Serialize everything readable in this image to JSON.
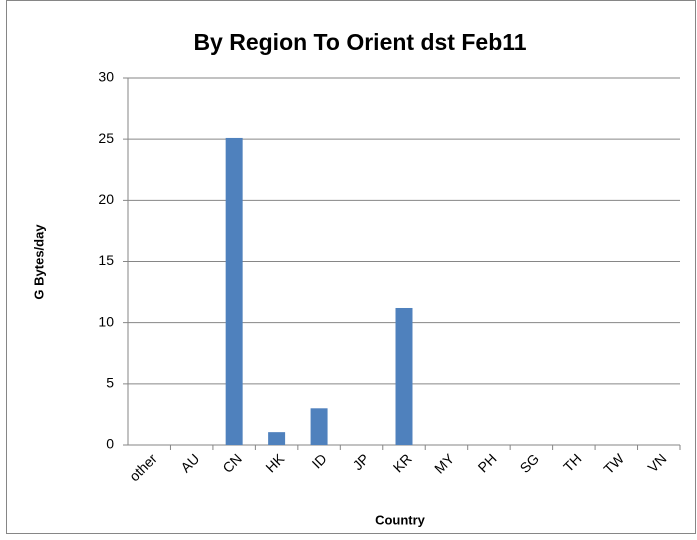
{
  "chart_data": {
    "type": "bar",
    "title": "By Region To Orient dst Feb11",
    "x_label": "Country",
    "y_label": "G Bytes/day",
    "categories": [
      "other",
      "AU",
      "CN",
      "HK",
      "ID",
      "JP",
      "KR",
      "MY",
      "PH",
      "SG",
      "TH",
      "TW",
      "VN"
    ],
    "values": [
      0,
      0,
      25.1,
      1.05,
      3,
      0,
      11.2,
      0,
      0,
      0,
      0,
      0,
      0
    ],
    "color": "#4f81bd",
    "ylim": [
      0,
      30
    ],
    "yticks": [
      0,
      5,
      10,
      15,
      20,
      25,
      30
    ],
    "grid": true
  }
}
